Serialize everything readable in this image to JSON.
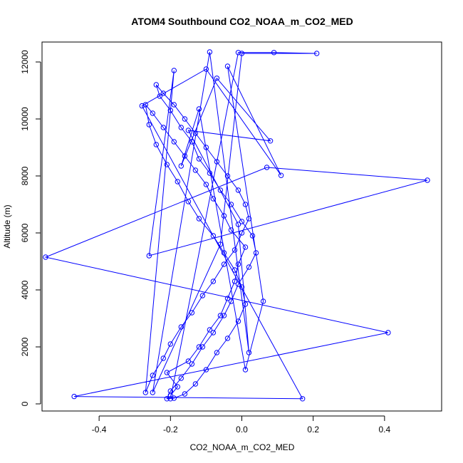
{
  "chart_data": {
    "type": "line",
    "title": "ATOM4 Southbound CO2_NOAA_m_CO2_MED",
    "xlabel": "CO2_NOAA_m_CO2_MED",
    "ylabel": "Altitude (m)",
    "xlim": [
      -0.56,
      0.56
    ],
    "ylim": [
      -250,
      12700
    ],
    "xticks": [
      -0.4,
      -0.2,
      0.0,
      0.2,
      0.4
    ],
    "xtick_labels": [
      "-0.4",
      "-0.2",
      "0.0",
      "0.2",
      "0.4"
    ],
    "yticks": [
      0,
      2000,
      4000,
      6000,
      8000,
      10000,
      12000
    ],
    "ytick_labels": [
      "0",
      "2000",
      "4000",
      "6000",
      "8000",
      "10000",
      "12000"
    ],
    "grid": false,
    "color": "#0000ff",
    "series": [
      {
        "x": [
          -0.2,
          -0.18,
          -0.21,
          -0.15,
          -0.12,
          -0.09,
          -0.06,
          -0.04,
          -0.02,
          -0.01,
          0.01,
          -0.03,
          -0.05,
          -0.08,
          -0.1,
          -0.13,
          -0.16,
          -0.19,
          -0.22,
          -0.25,
          -0.27,
          -0.26,
          -0.24,
          -0.21,
          -0.18,
          -0.15,
          -0.12,
          -0.08,
          -0.05,
          -0.02,
          0.0,
          0.01,
          -0.01,
          -0.04,
          -0.07,
          -0.1,
          -0.13,
          -0.16,
          -0.19,
          -0.21,
          -0.2,
          -0.17,
          -0.14,
          -0.11,
          -0.08,
          -0.05,
          -0.03,
          -0.01,
          0.02,
          0.04,
          0.03,
          0.0,
          -0.03,
          -0.06,
          -0.09,
          -0.12,
          -0.14,
          -0.17,
          -0.2,
          -0.23,
          -0.24,
          -0.22,
          -0.19,
          -0.16,
          -0.13,
          -0.1,
          -0.07,
          -0.04,
          -0.01,
          0.01,
          0.02,
          0.0,
          -0.02,
          -0.05,
          -0.08,
          -0.11,
          -0.14,
          -0.17,
          -0.2,
          -0.22,
          -0.25,
          -0.27,
          -0.19,
          -0.26,
          0.52,
          0.07,
          -0.55,
          0.41,
          -0.47,
          0.17,
          -0.28,
          -0.1,
          0.11,
          -0.04,
          0.06,
          0.01,
          -0.12,
          -0.17,
          -0.07,
          0.08,
          -0.15,
          -0.01,
          0.02,
          -0.09,
          -0.25,
          -0.06,
          0.0,
          0.21,
          0.09,
          -0.01,
          -0.2
        ],
        "y": [
          300,
          600,
          1100,
          1500,
          2000,
          2600,
          3100,
          3700,
          4300,
          4900,
          5500,
          6100,
          6600,
          7200,
          7700,
          8200,
          8700,
          9200,
          9700,
          10200,
          10500,
          9800,
          9100,
          8400,
          7800,
          7100,
          6500,
          5900,
          5300,
          4700,
          4100,
          3500,
          2900,
          2300,
          1800,
          1200,
          700,
          350,
          200,
          180,
          450,
          900,
          1400,
          2000,
          2500,
          3100,
          3600,
          4200,
          4800,
          5300,
          5900,
          6400,
          7000,
          7500,
          8100,
          8600,
          9200,
          9700,
          10300,
          10800,
          11200,
          10900,
          10500,
          10000,
          9500,
          9000,
          8500,
          8000,
          7500,
          7000,
          6500,
          6000,
          5400,
          4900,
          4300,
          3800,
          3200,
          2700,
          2100,
          1600,
          1000,
          400,
          11700,
          5200,
          7850,
          8300,
          5150,
          2500,
          260,
          180,
          10460,
          11750,
          8020,
          11850,
          3600,
          1200,
          10350,
          8350,
          11430,
          9230,
          9600,
          6300,
          1800,
          12350,
          400,
          5600,
          12300,
          12300,
          12330,
          12330,
          180
        ]
      }
    ]
  }
}
